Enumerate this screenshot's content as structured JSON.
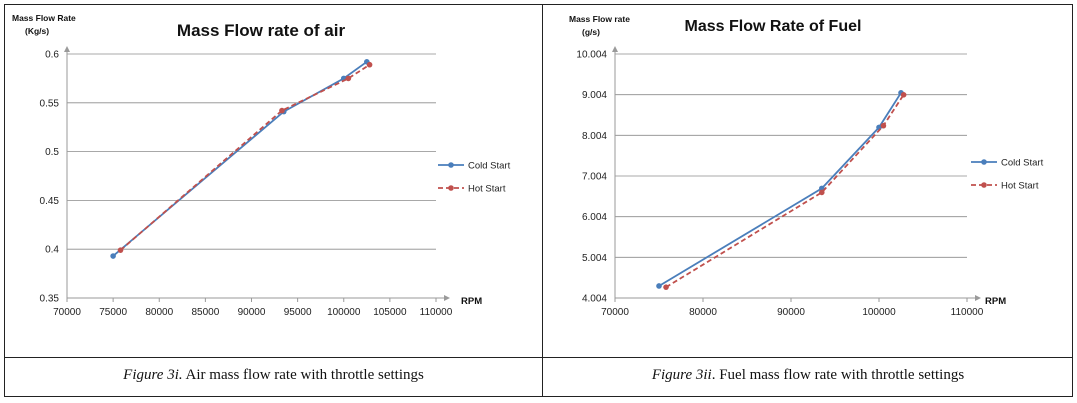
{
  "chart_data": [
    {
      "type": "line",
      "title": "Mass Flow rate of air",
      "ylabel_line1": "Mass Flow Rate",
      "ylabel_line2": "(Kg/s)",
      "xlabel": "RPM",
      "xlim": [
        70000,
        110000
      ],
      "ylim": [
        0.35,
        0.6
      ],
      "xticks": [
        "70000",
        "75000",
        "80000",
        "85000",
        "90000",
        "95000",
        "100000",
        "105000",
        "110000"
      ],
      "yticks": [
        "0.35",
        "0.4",
        "0.45",
        "0.5",
        "0.55",
        "0.6"
      ],
      "grid": "horizontal",
      "legend_position": "right",
      "series": [
        {
          "name": "Cold Start",
          "color": "#4a7ebb",
          "style": "solid",
          "x": [
            75000,
            93500,
            100000,
            102500
          ],
          "y": [
            0.393,
            0.541,
            0.575,
            0.592
          ]
        },
        {
          "name": "Hot Start",
          "color": "#c0504d",
          "style": "dashed",
          "x": [
            75800,
            93300,
            100500,
            102800
          ],
          "y": [
            0.399,
            0.542,
            0.575,
            0.589
          ]
        }
      ]
    },
    {
      "type": "line",
      "title": "Mass Flow Rate of Fuel",
      "ylabel_line1": "Mass Flow rate",
      "ylabel_line2": "(g/s)",
      "xlabel": "RPM",
      "xlim": [
        70000,
        110000
      ],
      "ylim": [
        4.004,
        10.004
      ],
      "xticks": [
        "70000",
        "80000",
        "90000",
        "100000",
        "110000"
      ],
      "yticks": [
        "4.004",
        "5.004",
        "6.004",
        "7.004",
        "8.004",
        "9.004",
        "10.004"
      ],
      "grid": "horizontal",
      "legend_position": "right",
      "series": [
        {
          "name": "Cold Start",
          "color": "#4a7ebb",
          "style": "solid",
          "x": [
            75000,
            93500,
            100000,
            102500
          ],
          "y": [
            4.3,
            6.7,
            8.2,
            9.05
          ]
        },
        {
          "name": "Hot Start",
          "color": "#c0504d",
          "style": "dashed",
          "x": [
            75800,
            93500,
            100500,
            102800
          ],
          "y": [
            4.27,
            6.6,
            8.24,
            9.0
          ]
        }
      ]
    }
  ],
  "captions": [
    {
      "label": "Figure 3i.",
      "text": " Air mass flow rate with throttle settings"
    },
    {
      "label": "Figure 3ii",
      "text": ". Fuel mass flow rate with throttle settings"
    }
  ]
}
